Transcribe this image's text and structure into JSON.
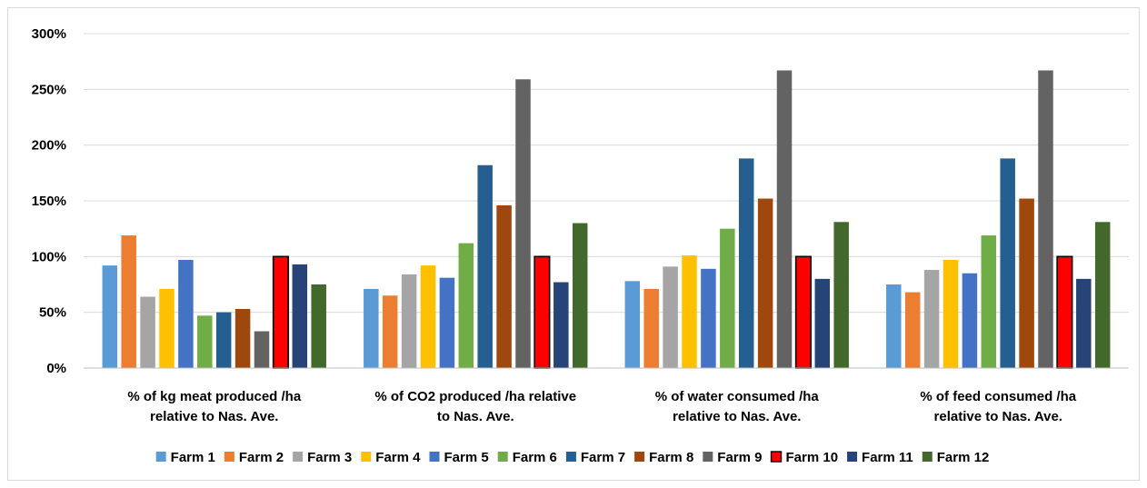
{
  "chart_data": {
    "type": "bar",
    "title": "",
    "xlabel": "",
    "ylabel": "",
    "ylim": [
      0,
      3.0
    ],
    "y_ticks": [
      {
        "value": 0,
        "label": "0%"
      },
      {
        "value": 0.5,
        "label": "50%"
      },
      {
        "value": 1.0,
        "label": "100%"
      },
      {
        "value": 1.5,
        "label": "150%"
      },
      {
        "value": 2.0,
        "label": "200%"
      },
      {
        "value": 2.5,
        "label": "250%"
      },
      {
        "value": 3.0,
        "label": "300%"
      }
    ],
    "grid": true,
    "legend_position": "bottom",
    "categories": [
      [
        "% of kg meat produced /ha",
        "relative to Nas. Ave."
      ],
      [
        "% of CO2 produced /ha relative",
        "to Nas. Ave."
      ],
      [
        "% of water consumed /ha",
        "relative to Nas. Ave."
      ],
      [
        "% of feed consumed /ha",
        "relative to Nas. Ave."
      ]
    ],
    "series": [
      {
        "name": "Farm 1",
        "color": "#5b9bd5",
        "values": [
          0.92,
          0.71,
          0.78,
          0.75
        ]
      },
      {
        "name": "Farm 2",
        "color": "#ed7d31",
        "values": [
          1.19,
          0.65,
          0.71,
          0.68
        ]
      },
      {
        "name": "Farm 3",
        "color": "#a5a5a5",
        "values": [
          0.64,
          0.84,
          0.91,
          0.88
        ]
      },
      {
        "name": "Farm 4",
        "color": "#ffc000",
        "values": [
          0.71,
          0.92,
          1.01,
          0.97
        ]
      },
      {
        "name": "Farm 5",
        "color": "#4472c4",
        "values": [
          0.97,
          0.81,
          0.89,
          0.85
        ]
      },
      {
        "name": "Farm 6",
        "color": "#70ad47",
        "values": [
          0.47,
          1.12,
          1.25,
          1.19
        ]
      },
      {
        "name": "Farm 7",
        "color": "#255e91",
        "values": [
          0.5,
          1.82,
          1.88,
          1.88
        ]
      },
      {
        "name": "Farm 8",
        "color": "#9e480e",
        "values": [
          0.53,
          1.46,
          1.52,
          1.52
        ]
      },
      {
        "name": "Farm 9",
        "color": "#636363",
        "values": [
          0.33,
          2.59,
          2.67,
          2.67
        ]
      },
      {
        "name": "Farm 10",
        "color": "#ff0000",
        "stroke": "#000000",
        "values": [
          1.0,
          1.0,
          1.0,
          1.0
        ]
      },
      {
        "name": "Farm 11",
        "color": "#264478",
        "values": [
          0.93,
          0.77,
          0.8,
          0.8
        ]
      },
      {
        "name": "Farm 12",
        "color": "#43682b",
        "values": [
          0.75,
          1.3,
          1.31,
          1.31
        ]
      }
    ]
  }
}
